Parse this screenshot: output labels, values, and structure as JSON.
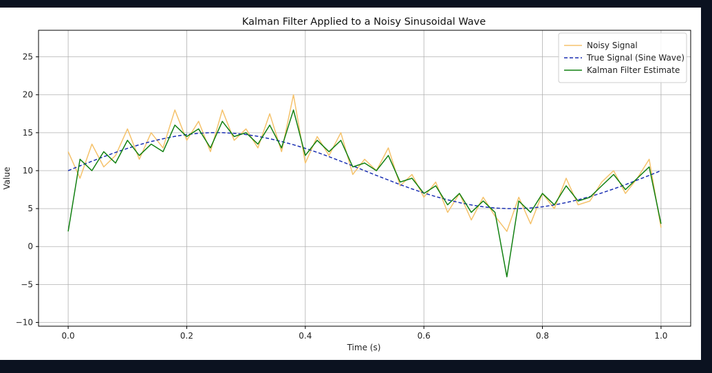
{
  "chart_data": {
    "type": "line",
    "title": "Kalman Filter Applied to a Noisy Sinusoidal Wave",
    "xlabel": "Time (s)",
    "ylabel": "Value",
    "xlim": [
      -0.05,
      1.05
    ],
    "ylim": [
      -10.5,
      28.5
    ],
    "xticks": [
      0.0,
      0.2,
      0.4,
      0.6,
      0.8,
      1.0
    ],
    "xtick_labels": [
      "0.0",
      "0.2",
      "0.4",
      "0.6",
      "0.8",
      "1.0"
    ],
    "yticks": [
      -10,
      -5,
      0,
      5,
      10,
      15,
      20,
      25
    ],
    "ytick_labels": [
      "−10",
      "−5",
      "0",
      "5",
      "10",
      "15",
      "20",
      "25"
    ],
    "grid": true,
    "legend_position": "upper-right",
    "series": [
      {
        "name": "Noisy Signal",
        "color": "#f5c26b",
        "style": "solid",
        "x": [
          0.0,
          0.02,
          0.04,
          0.06,
          0.08,
          0.1,
          0.12,
          0.14,
          0.16,
          0.18,
          0.2,
          0.22,
          0.24,
          0.26,
          0.28,
          0.3,
          0.32,
          0.34,
          0.36,
          0.38,
          0.4,
          0.42,
          0.44,
          0.46,
          0.48,
          0.5,
          0.52,
          0.54,
          0.56,
          0.58,
          0.6,
          0.62,
          0.64,
          0.66,
          0.68,
          0.7,
          0.72,
          0.74,
          0.76,
          0.78,
          0.8,
          0.82,
          0.84,
          0.86,
          0.88,
          0.9,
          0.92,
          0.94,
          0.96,
          0.98,
          1.0
        ],
        "values": [
          12.5,
          9.0,
          13.5,
          10.5,
          12.0,
          15.5,
          11.5,
          15.0,
          13.0,
          18.0,
          14.0,
          16.5,
          12.5,
          18.0,
          14.0,
          15.5,
          13.0,
          17.5,
          12.5,
          20.0,
          11.0,
          14.5,
          12.0,
          15.0,
          9.5,
          11.5,
          10.0,
          13.0,
          8.0,
          9.5,
          6.5,
          8.5,
          4.5,
          7.0,
          3.5,
          6.5,
          4.0,
          2.0,
          6.5,
          3.0,
          7.0,
          5.0,
          9.0,
          5.5,
          6.0,
          8.5,
          10.0,
          7.0,
          9.0,
          11.5,
          2.5
        ]
      },
      {
        "name": "True Signal (Sine Wave)",
        "color": "#1a2fb3",
        "style": "dashed",
        "x": [
          0.0,
          0.02,
          0.04,
          0.06,
          0.08,
          0.1,
          0.12,
          0.14,
          0.16,
          0.18,
          0.2,
          0.22,
          0.24,
          0.26,
          0.28,
          0.3,
          0.32,
          0.34,
          0.36,
          0.38,
          0.4,
          0.42,
          0.44,
          0.46,
          0.48,
          0.5,
          0.52,
          0.54,
          0.56,
          0.58,
          0.6,
          0.62,
          0.64,
          0.66,
          0.68,
          0.7,
          0.72,
          0.74,
          0.76,
          0.78,
          0.8,
          0.82,
          0.84,
          0.86,
          0.88,
          0.9,
          0.92,
          0.94,
          0.96,
          0.98,
          1.0
        ],
        "values": [
          10.0,
          10.63,
          11.24,
          11.84,
          12.41,
          12.94,
          13.42,
          13.84,
          14.21,
          14.52,
          14.76,
          14.92,
          15.0,
          15.0,
          14.92,
          14.76,
          14.52,
          14.21,
          13.84,
          13.42,
          12.94,
          12.41,
          11.84,
          11.24,
          10.63,
          10.0,
          9.37,
          8.76,
          8.16,
          7.59,
          7.06,
          6.58,
          6.16,
          5.79,
          5.48,
          5.24,
          5.08,
          5.0,
          5.0,
          5.08,
          5.24,
          5.48,
          5.79,
          6.16,
          6.58,
          7.06,
          7.59,
          8.16,
          8.76,
          9.37,
          10.0
        ]
      },
      {
        "name": "Kalman Filter Estimate",
        "color": "#118011",
        "style": "solid",
        "x": [
          0.0,
          0.02,
          0.04,
          0.06,
          0.08,
          0.1,
          0.12,
          0.14,
          0.16,
          0.18,
          0.2,
          0.22,
          0.24,
          0.26,
          0.28,
          0.3,
          0.32,
          0.34,
          0.36,
          0.38,
          0.4,
          0.42,
          0.44,
          0.46,
          0.48,
          0.5,
          0.52,
          0.54,
          0.56,
          0.58,
          0.6,
          0.62,
          0.64,
          0.66,
          0.68,
          0.7,
          0.72,
          0.74,
          0.76,
          0.78,
          0.8,
          0.82,
          0.84,
          0.86,
          0.88,
          0.9,
          0.92,
          0.94,
          0.96,
          0.98,
          1.0
        ],
        "values": [
          2.0,
          11.5,
          10.0,
          12.5,
          11.0,
          14.0,
          12.0,
          13.5,
          12.5,
          16.0,
          14.5,
          15.5,
          13.0,
          16.5,
          14.5,
          15.0,
          13.5,
          16.0,
          13.0,
          18.0,
          12.0,
          14.0,
          12.5,
          14.0,
          10.5,
          11.0,
          10.0,
          12.0,
          8.5,
          9.0,
          7.0,
          8.0,
          5.5,
          7.0,
          4.5,
          6.0,
          4.5,
          -4.0,
          6.0,
          4.5,
          7.0,
          5.5,
          8.0,
          6.0,
          6.5,
          8.0,
          9.5,
          7.5,
          9.0,
          10.5,
          3.0
        ]
      }
    ]
  }
}
